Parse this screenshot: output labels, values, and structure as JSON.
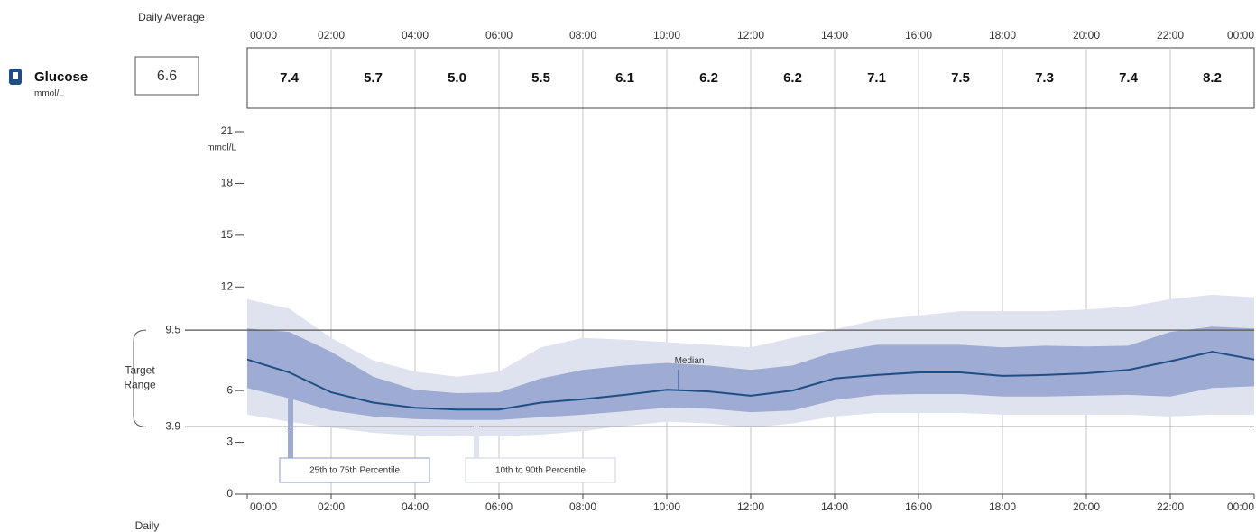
{
  "chart_data": {
    "type": "percentile-band",
    "daily_average_label": "Daily Average",
    "metric": "Glucose",
    "metric_unit": "mmol/L",
    "daily_average": "6.6",
    "interval_averages": [
      "7.4",
      "5.7",
      "5.0",
      "5.5",
      "6.1",
      "6.2",
      "6.2",
      "7.1",
      "7.5",
      "7.3",
      "7.4",
      "8.2"
    ],
    "y_unit": "mmol/L",
    "footer_label": "Daily",
    "x": [
      0,
      1,
      2,
      3,
      4,
      5,
      6,
      7,
      8,
      9,
      10,
      11,
      12,
      13,
      14,
      15,
      16,
      17,
      18,
      19,
      20,
      21,
      22,
      23,
      24
    ],
    "xlim": [
      0,
      24
    ],
    "xticks": [
      {
        "value": 0,
        "label": "00:00"
      },
      {
        "value": 2,
        "label": "02:00"
      },
      {
        "value": 4,
        "label": "04:00"
      },
      {
        "value": 6,
        "label": "06:00"
      },
      {
        "value": 8,
        "label": "08:00"
      },
      {
        "value": 10,
        "label": "10:00"
      },
      {
        "value": 12,
        "label": "12:00"
      },
      {
        "value": 14,
        "label": "14:00"
      },
      {
        "value": 16,
        "label": "16:00"
      },
      {
        "value": 18,
        "label": "18:00"
      },
      {
        "value": 20,
        "label": "20:00"
      },
      {
        "value": 22,
        "label": "22:00"
      },
      {
        "value": 24,
        "label": "00:00"
      }
    ],
    "ylim": [
      0,
      21
    ],
    "yticks": [
      0,
      3,
      6,
      12,
      15,
      18,
      21
    ],
    "target_range": {
      "label": "Target Range",
      "low": 3.9,
      "high": 9.5
    },
    "series": [
      {
        "name": "10th to 90th Percentile",
        "color": "#dfe3ef",
        "high": [
          11.3,
          10.75,
          9.05,
          7.75,
          7.1,
          6.8,
          7.1,
          8.5,
          9.05,
          8.95,
          8.8,
          8.65,
          8.5,
          9.05,
          9.55,
          10.1,
          10.35,
          10.6,
          10.6,
          10.6,
          10.7,
          10.85,
          11.3,
          11.55,
          11.4
        ],
        "low": [
          4.6,
          4.2,
          3.85,
          3.55,
          3.4,
          3.35,
          3.35,
          3.45,
          3.65,
          3.95,
          4.2,
          4.1,
          3.85,
          4.1,
          4.5,
          4.7,
          4.7,
          4.7,
          4.6,
          4.6,
          4.6,
          4.6,
          4.5,
          4.6,
          4.6
        ]
      },
      {
        "name": "25th to 75th Percentile",
        "color": "#9eabd3",
        "high": [
          9.6,
          9.4,
          8.25,
          6.8,
          6.05,
          5.85,
          5.9,
          6.7,
          7.2,
          7.45,
          7.6,
          7.45,
          7.2,
          7.45,
          8.25,
          8.65,
          8.65,
          8.65,
          8.5,
          8.6,
          8.55,
          8.6,
          9.4,
          9.7,
          9.6
        ],
        "low": [
          6.15,
          5.55,
          4.85,
          4.5,
          4.35,
          4.3,
          4.3,
          4.45,
          4.6,
          4.8,
          5.0,
          4.95,
          4.75,
          4.85,
          5.45,
          5.75,
          5.8,
          5.8,
          5.65,
          5.65,
          5.7,
          5.75,
          5.65,
          6.15,
          6.25
        ]
      },
      {
        "name": "Median",
        "color": "#1f4e85",
        "values": [
          7.8,
          7.05,
          5.9,
          5.3,
          5.0,
          4.9,
          4.9,
          5.3,
          5.5,
          5.75,
          6.05,
          5.95,
          5.7,
          6.0,
          6.7,
          6.9,
          7.05,
          7.05,
          6.85,
          6.9,
          7.0,
          7.2,
          7.7,
          8.25,
          7.8
        ]
      }
    ]
  }
}
